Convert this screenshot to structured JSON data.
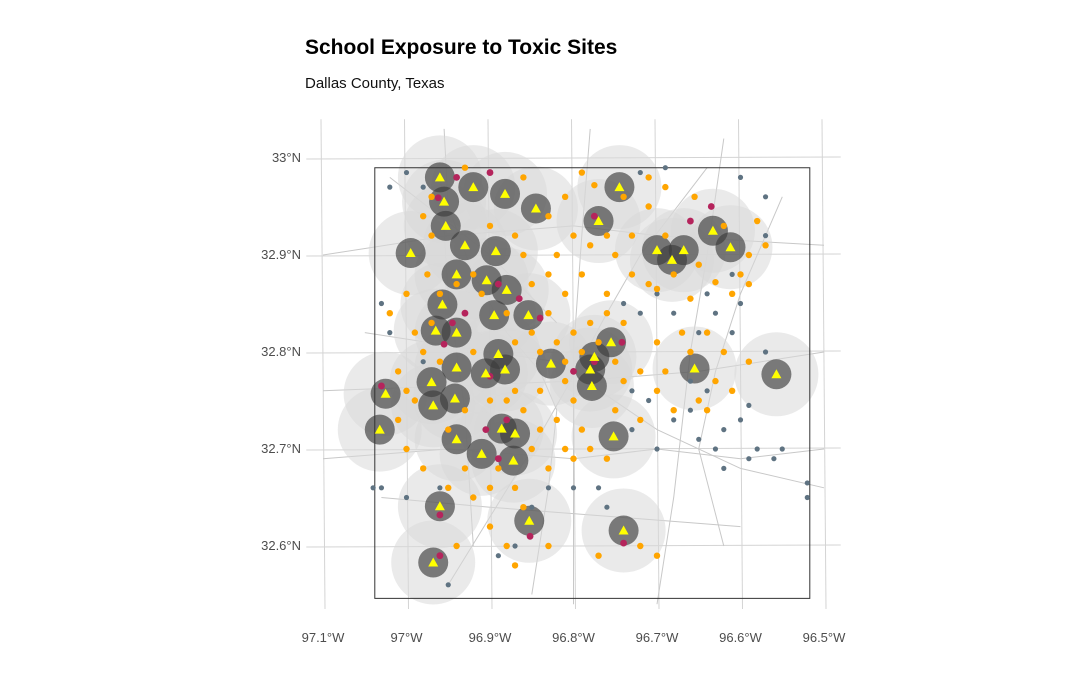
{
  "title": "School Exposure to Toxic Sites",
  "subtitle": "Dallas County, Texas",
  "colors": {
    "buffer_outer": "#d9d9d9",
    "buffer_inner": "#3c3c3c",
    "school": "#ffff00",
    "site_near": "#b5245c",
    "site_mid": "#ffa500",
    "site_far": "#5f7382",
    "graticule": "#d4d4d4",
    "road": "#c8c8c8",
    "county_border": "#333333"
  },
  "chart_data": {
    "type": "map",
    "lon_range": [
      -97.12,
      -96.48
    ],
    "lat_range": [
      32.535,
      33.04
    ],
    "lon_ticks": [
      {
        "v": -97.1,
        "label": "97.1°W"
      },
      {
        "v": -97.0,
        "label": "97°W"
      },
      {
        "v": -96.9,
        "label": "96.9°W"
      },
      {
        "v": -96.8,
        "label": "96.8°W"
      },
      {
        "v": -96.7,
        "label": "96.7°W"
      },
      {
        "v": -96.6,
        "label": "96.6°W"
      },
      {
        "v": -96.5,
        "label": "96.5°W"
      }
    ],
    "lat_ticks": [
      {
        "v": 33.0,
        "label": "33°N"
      },
      {
        "v": 32.9,
        "label": "32.9°N"
      },
      {
        "v": 32.8,
        "label": "32.8°N"
      },
      {
        "v": 32.7,
        "label": "32.7°N"
      },
      {
        "v": 32.6,
        "label": "32.6°N"
      }
    ],
    "county_boundary": [
      [
        -97.038,
        32.99
      ],
      [
        -96.517,
        32.99
      ],
      [
        -96.517,
        32.546
      ],
      [
        -97.038,
        32.546
      ]
    ],
    "schools": [
      [
        -96.96,
        32.98
      ],
      [
        -96.955,
        32.955
      ],
      [
        -96.92,
        32.97
      ],
      [
        -96.882,
        32.963
      ],
      [
        -96.845,
        32.948
      ],
      [
        -96.953,
        32.93
      ],
      [
        -96.93,
        32.91
      ],
      [
        -96.893,
        32.904
      ],
      [
        -96.995,
        32.902
      ],
      [
        -96.77,
        32.935
      ],
      [
        -96.745,
        32.97
      ],
      [
        -96.7,
        32.905
      ],
      [
        -96.682,
        32.895
      ],
      [
        -96.668,
        32.905
      ],
      [
        -96.633,
        32.925
      ],
      [
        -96.612,
        32.908
      ],
      [
        -96.94,
        32.88
      ],
      [
        -96.904,
        32.874
      ],
      [
        -96.88,
        32.864
      ],
      [
        -96.957,
        32.849
      ],
      [
        -96.895,
        32.838
      ],
      [
        -96.854,
        32.838
      ],
      [
        -96.965,
        32.822
      ],
      [
        -96.94,
        32.82
      ],
      [
        -96.755,
        32.81
      ],
      [
        -96.775,
        32.795
      ],
      [
        -96.89,
        32.798
      ],
      [
        -96.94,
        32.784
      ],
      [
        -96.905,
        32.778
      ],
      [
        -96.882,
        32.782
      ],
      [
        -96.827,
        32.788
      ],
      [
        -96.78,
        32.782
      ],
      [
        -96.778,
        32.765
      ],
      [
        -96.655,
        32.783
      ],
      [
        -96.557,
        32.777
      ],
      [
        -96.97,
        32.769
      ],
      [
        -96.942,
        32.752
      ],
      [
        -97.025,
        32.757
      ],
      [
        -97.032,
        32.72
      ],
      [
        -96.968,
        32.745
      ],
      [
        -96.886,
        32.721
      ],
      [
        -96.87,
        32.716
      ],
      [
        -96.94,
        32.71
      ],
      [
        -96.91,
        32.695
      ],
      [
        -96.872,
        32.688
      ],
      [
        -96.752,
        32.713
      ],
      [
        -96.96,
        32.641
      ],
      [
        -96.853,
        32.626
      ],
      [
        -96.74,
        32.616
      ],
      [
        -96.968,
        32.583
      ]
    ],
    "sites_near": [
      [
        -96.94,
        32.98
      ],
      [
        -96.9,
        32.985
      ],
      [
        -96.962,
        32.959
      ],
      [
        -96.775,
        32.94
      ],
      [
        -96.89,
        32.87
      ],
      [
        -96.865,
        32.855
      ],
      [
        -96.84,
        32.835
      ],
      [
        -96.955,
        32.808
      ],
      [
        -96.9,
        32.775
      ],
      [
        -96.905,
        32.72
      ],
      [
        -96.775,
        32.79
      ],
      [
        -96.742,
        32.81
      ],
      [
        -96.66,
        32.935
      ],
      [
        -96.96,
        32.632
      ],
      [
        -96.96,
        32.59
      ],
      [
        -96.635,
        32.95
      ],
      [
        -96.852,
        32.61
      ],
      [
        -96.8,
        32.78
      ],
      [
        -96.945,
        32.83
      ],
      [
        -96.74,
        32.603
      ],
      [
        -97.03,
        32.765
      ],
      [
        -96.89,
        32.69
      ],
      [
        -96.93,
        32.84
      ],
      [
        -96.88,
        32.73
      ]
    ],
    "sites_mid": [
      [
        -96.79,
        32.985
      ],
      [
        -96.775,
        32.972
      ],
      [
        -96.71,
        32.98
      ],
      [
        -96.69,
        32.97
      ],
      [
        -96.655,
        32.96
      ],
      [
        -96.62,
        32.93
      ],
      [
        -96.58,
        32.935
      ],
      [
        -96.59,
        32.9
      ],
      [
        -96.6,
        32.88
      ],
      [
        -96.63,
        32.872
      ],
      [
        -96.66,
        32.855
      ],
      [
        -96.7,
        32.865
      ],
      [
        -96.73,
        32.88
      ],
      [
        -96.75,
        32.9
      ],
      [
        -96.78,
        32.91
      ],
      [
        -96.8,
        32.92
      ],
      [
        -96.82,
        32.9
      ],
      [
        -96.83,
        32.88
      ],
      [
        -96.85,
        32.87
      ],
      [
        -96.86,
        32.9
      ],
      [
        -96.87,
        32.92
      ],
      [
        -96.9,
        32.93
      ],
      [
        -96.97,
        32.92
      ],
      [
        -96.975,
        32.88
      ],
      [
        -97.0,
        32.86
      ],
      [
        -97.02,
        32.84
      ],
      [
        -96.99,
        32.82
      ],
      [
        -96.98,
        32.8
      ],
      [
        -96.96,
        32.79
      ],
      [
        -96.92,
        32.8
      ],
      [
        -96.87,
        32.81
      ],
      [
        -96.84,
        32.8
      ],
      [
        -96.82,
        32.81
      ],
      [
        -96.8,
        32.82
      ],
      [
        -96.78,
        32.83
      ],
      [
        -96.76,
        32.84
      ],
      [
        -96.74,
        32.83
      ],
      [
        -96.72,
        32.78
      ],
      [
        -96.7,
        32.76
      ],
      [
        -96.68,
        32.74
      ],
      [
        -96.65,
        32.75
      ],
      [
        -96.63,
        32.77
      ],
      [
        -96.62,
        32.8
      ],
      [
        -96.64,
        32.82
      ],
      [
        -96.67,
        32.82
      ],
      [
        -96.7,
        32.81
      ],
      [
        -96.72,
        32.73
      ],
      [
        -96.75,
        32.74
      ],
      [
        -96.8,
        32.75
      ],
      [
        -96.82,
        32.73
      ],
      [
        -96.84,
        32.72
      ],
      [
        -96.85,
        32.7
      ],
      [
        -96.83,
        32.68
      ],
      [
        -96.8,
        32.69
      ],
      [
        -96.78,
        32.7
      ],
      [
        -96.76,
        32.69
      ],
      [
        -96.9,
        32.66
      ],
      [
        -96.92,
        32.65
      ],
      [
        -96.95,
        32.66
      ],
      [
        -96.98,
        32.68
      ],
      [
        -97.0,
        32.7
      ],
      [
        -97.01,
        32.73
      ],
      [
        -97.0,
        32.76
      ],
      [
        -96.93,
        32.74
      ],
      [
        -96.9,
        32.75
      ],
      [
        -96.87,
        32.76
      ],
      [
        -96.84,
        32.76
      ],
      [
        -96.81,
        32.77
      ],
      [
        -96.86,
        32.64
      ],
      [
        -96.88,
        32.6
      ],
      [
        -96.87,
        32.58
      ],
      [
        -96.83,
        32.6
      ],
      [
        -96.9,
        32.62
      ],
      [
        -96.94,
        32.6
      ],
      [
        -96.72,
        32.6
      ],
      [
        -96.7,
        32.59
      ],
      [
        -96.77,
        32.59
      ],
      [
        -96.81,
        32.79
      ],
      [
        -96.79,
        32.8
      ],
      [
        -96.77,
        32.81
      ],
      [
        -96.69,
        32.92
      ],
      [
        -96.71,
        32.95
      ],
      [
        -96.74,
        32.96
      ],
      [
        -96.81,
        32.96
      ],
      [
        -96.83,
        32.94
      ],
      [
        -96.86,
        32.98
      ],
      [
        -96.93,
        32.99
      ],
      [
        -96.97,
        32.96
      ],
      [
        -96.98,
        32.94
      ],
      [
        -96.91,
        32.86
      ],
      [
        -96.92,
        32.88
      ],
      [
        -96.88,
        32.84
      ],
      [
        -96.85,
        32.82
      ],
      [
        -96.83,
        32.84
      ],
      [
        -96.81,
        32.86
      ],
      [
        -96.79,
        32.88
      ],
      [
        -96.76,
        32.86
      ],
      [
        -96.75,
        32.79
      ],
      [
        -96.74,
        32.77
      ],
      [
        -96.79,
        32.72
      ],
      [
        -96.81,
        32.7
      ],
      [
        -96.86,
        32.74
      ],
      [
        -96.88,
        32.75
      ],
      [
        -96.89,
        32.68
      ],
      [
        -96.87,
        32.66
      ],
      [
        -96.93,
        32.68
      ],
      [
        -96.95,
        32.72
      ],
      [
        -96.99,
        32.75
      ],
      [
        -97.01,
        32.78
      ],
      [
        -96.97,
        32.83
      ],
      [
        -96.96,
        32.86
      ],
      [
        -96.94,
        32.87
      ],
      [
        -96.57,
        32.91
      ],
      [
        -96.59,
        32.87
      ],
      [
        -96.61,
        32.86
      ],
      [
        -96.65,
        32.89
      ],
      [
        -96.68,
        32.88
      ],
      [
        -96.71,
        32.87
      ],
      [
        -96.66,
        32.8
      ],
      [
        -96.69,
        32.78
      ],
      [
        -96.64,
        32.74
      ],
      [
        -96.61,
        32.76
      ],
      [
        -96.59,
        32.79
      ],
      [
        -96.73,
        32.92
      ],
      [
        -96.76,
        32.92
      ]
    ],
    "sites_far": [
      [
        -97.02,
        32.97
      ],
      [
        -97.0,
        32.985
      ],
      [
        -96.98,
        32.97
      ],
      [
        -96.72,
        32.985
      ],
      [
        -96.69,
        32.99
      ],
      [
        -96.6,
        32.98
      ],
      [
        -96.57,
        32.92
      ],
      [
        -96.6,
        32.85
      ],
      [
        -96.63,
        32.84
      ],
      [
        -96.61,
        32.82
      ],
      [
        -96.65,
        32.82
      ],
      [
        -96.68,
        32.84
      ],
      [
        -96.7,
        32.86
      ],
      [
        -96.66,
        32.77
      ],
      [
        -96.64,
        32.76
      ],
      [
        -96.62,
        32.72
      ],
      [
        -96.6,
        32.73
      ],
      [
        -96.58,
        32.7
      ],
      [
        -96.59,
        32.69
      ],
      [
        -96.65,
        32.71
      ],
      [
        -96.7,
        32.7
      ],
      [
        -96.73,
        32.72
      ],
      [
        -96.77,
        32.66
      ],
      [
        -96.76,
        32.64
      ],
      [
        -96.8,
        32.66
      ],
      [
        -96.83,
        32.66
      ],
      [
        -96.85,
        32.64
      ],
      [
        -96.87,
        32.6
      ],
      [
        -96.89,
        32.59
      ],
      [
        -96.96,
        32.66
      ],
      [
        -97.03,
        32.66
      ],
      [
        -97.04,
        32.66
      ],
      [
        -97.0,
        32.65
      ],
      [
        -96.95,
        32.56
      ],
      [
        -96.52,
        32.665
      ],
      [
        -96.52,
        32.65
      ],
      [
        -96.55,
        32.7
      ],
      [
        -96.73,
        32.76
      ],
      [
        -96.71,
        32.75
      ],
      [
        -96.68,
        32.73
      ],
      [
        -96.66,
        32.74
      ],
      [
        -96.63,
        32.7
      ],
      [
        -96.62,
        32.68
      ],
      [
        -96.59,
        32.745
      ],
      [
        -96.57,
        32.8
      ],
      [
        -96.61,
        32.88
      ],
      [
        -96.74,
        32.85
      ],
      [
        -96.72,
        32.84
      ],
      [
        -97.03,
        32.85
      ],
      [
        -97.02,
        32.82
      ],
      [
        -96.98,
        32.79
      ],
      [
        -96.57,
        32.96
      ],
      [
        -96.56,
        32.69
      ],
      [
        -96.64,
        32.86
      ]
    ]
  }
}
